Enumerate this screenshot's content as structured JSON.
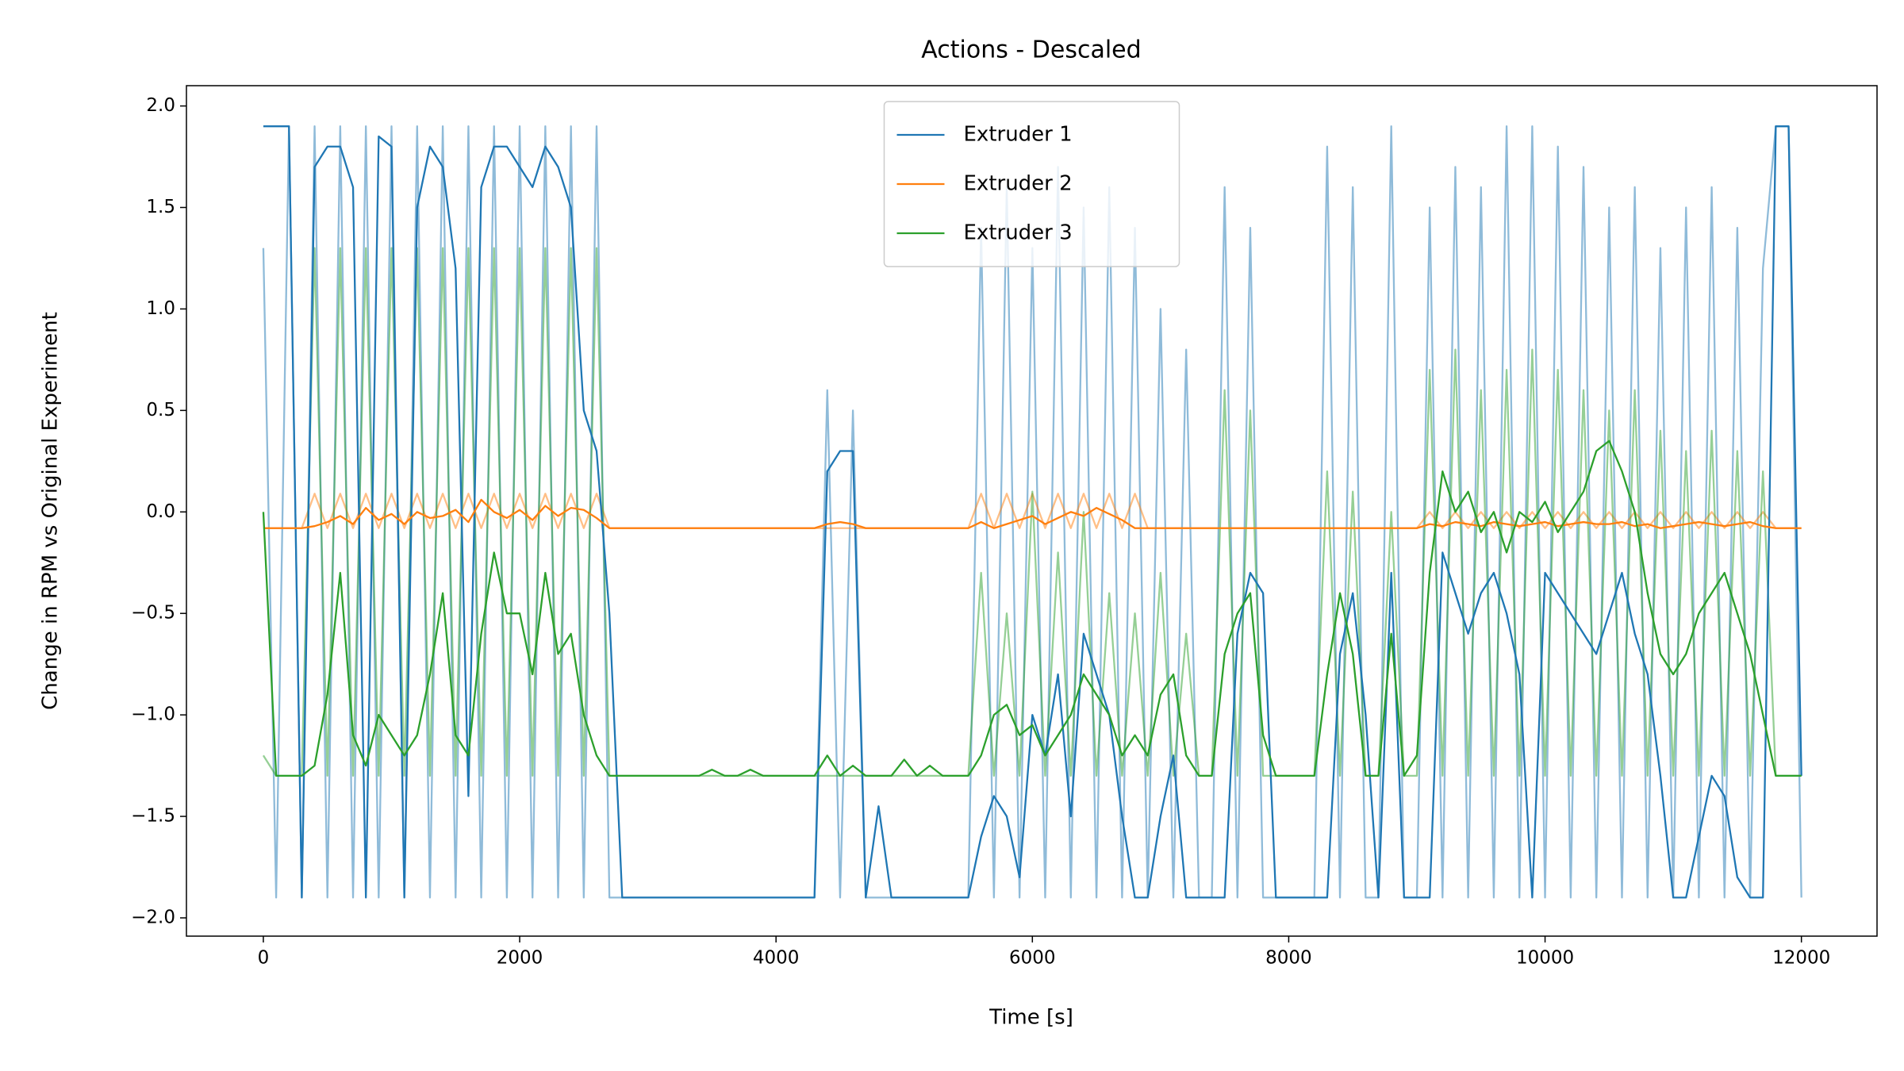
{
  "chart_data": {
    "type": "line",
    "title": "Actions - Descaled",
    "x_label": "Time [s]",
    "y_label": "Change in RPM vs Original Experiment",
    "legend": "upper center",
    "x": [
      0,
      100,
      200,
      300,
      400,
      500,
      600,
      700,
      800,
      900,
      1000,
      1100,
      1200,
      1300,
      1400,
      1500,
      1600,
      1700,
      1800,
      1900,
      2000,
      2100,
      2200,
      2300,
      2400,
      2500,
      2600,
      2700,
      2800,
      2900,
      3000,
      3100,
      3200,
      3300,
      3400,
      3500,
      3600,
      3700,
      3800,
      3900,
      4000,
      4100,
      4200,
      4300,
      4400,
      4500,
      4600,
      4700,
      4800,
      4900,
      5000,
      5100,
      5200,
      5300,
      5400,
      5500,
      5600,
      5700,
      5800,
      5900,
      6000,
      6100,
      6200,
      6300,
      6400,
      6500,
      6600,
      6700,
      6800,
      6900,
      7000,
      7100,
      7200,
      7300,
      7400,
      7500,
      7600,
      7700,
      7800,
      7900,
      8000,
      8100,
      8200,
      8300,
      8400,
      8500,
      8600,
      8700,
      8800,
      8900,
      9000,
      9100,
      9200,
      9300,
      9400,
      9500,
      9600,
      9700,
      9800,
      9900,
      10000,
      10100,
      10200,
      10300,
      10400,
      10500,
      10600,
      10700,
      10800,
      10900,
      11000,
      11100,
      11200,
      11300,
      11400,
      11500,
      11600,
      11700,
      11800,
      11900,
      12000
    ],
    "series": [
      {
        "color": "#1f77b4",
        "opacity": 0.5,
        "values": [
          1.3,
          -1.9,
          1.9,
          -1.9,
          1.9,
          -1.9,
          1.9,
          -1.9,
          1.9,
          -1.9,
          1.9,
          -1.9,
          1.9,
          -1.9,
          1.9,
          -1.9,
          1.9,
          -1.9,
          1.9,
          -1.9,
          1.9,
          -1.9,
          1.9,
          -1.9,
          1.9,
          -1.9,
          1.9,
          -1.9,
          -1.9,
          -1.9,
          -1.9,
          -1.9,
          -1.9,
          -1.9,
          -1.9,
          -1.9,
          -1.9,
          -1.9,
          -1.9,
          -1.9,
          -1.9,
          -1.9,
          -1.9,
          -1.9,
          0.6,
          -1.9,
          0.5,
          -1.9,
          -1.9,
          -1.9,
          -1.9,
          -1.9,
          -1.9,
          -1.9,
          -1.9,
          -1.9,
          1.4,
          -1.9,
          1.6,
          -1.9,
          1.3,
          -1.9,
          1.7,
          -1.9,
          1.5,
          -1.9,
          1.6,
          -1.9,
          1.4,
          -1.9,
          1.0,
          -1.9,
          0.8,
          -1.9,
          -1.9,
          1.6,
          -1.9,
          1.4,
          -1.9,
          -1.9,
          -1.9,
          -1.9,
          -1.9,
          1.8,
          -1.9,
          1.6,
          -1.9,
          -1.9,
          1.9,
          -1.9,
          -1.9,
          1.5,
          -1.9,
          1.7,
          -1.9,
          1.6,
          -1.9,
          1.9,
          -1.9,
          1.9,
          -1.9,
          1.8,
          -1.9,
          1.7,
          -1.9,
          1.5,
          -1.9,
          1.6,
          -1.9,
          1.3,
          -1.9,
          1.5,
          -1.9,
          1.6,
          -1.9,
          1.4,
          -1.9,
          1.2,
          1.9,
          1.9,
          -1.9
        ]
      },
      {
        "color": "#ff7f0e",
        "opacity": 0.5,
        "values": [
          -0.08,
          -0.08,
          -0.08,
          -0.08,
          0.09,
          -0.08,
          0.09,
          -0.08,
          0.09,
          -0.08,
          0.09,
          -0.08,
          0.09,
          -0.08,
          0.09,
          -0.08,
          0.09,
          -0.08,
          0.09,
          -0.08,
          0.09,
          -0.08,
          0.09,
          -0.08,
          0.09,
          -0.08,
          0.09,
          -0.08,
          -0.08,
          -0.08,
          -0.08,
          -0.08,
          -0.08,
          -0.08,
          -0.08,
          -0.08,
          -0.08,
          -0.08,
          -0.08,
          -0.08,
          -0.08,
          -0.08,
          -0.08,
          -0.08,
          -0.08,
          -0.08,
          -0.08,
          -0.08,
          -0.08,
          -0.08,
          -0.08,
          -0.08,
          -0.08,
          -0.08,
          -0.08,
          -0.08,
          0.09,
          -0.08,
          0.09,
          -0.08,
          0.09,
          -0.08,
          0.09,
          -0.08,
          0.09,
          -0.08,
          0.09,
          -0.08,
          0.09,
          -0.08,
          -0.08,
          -0.08,
          -0.08,
          -0.08,
          -0.08,
          -0.08,
          -0.08,
          -0.08,
          -0.08,
          -0.08,
          -0.08,
          -0.08,
          -0.08,
          -0.08,
          -0.08,
          -0.08,
          -0.08,
          -0.08,
          -0.08,
          -0.08,
          -0.08,
          0.0,
          -0.08,
          0.0,
          -0.08,
          0.0,
          -0.08,
          0.0,
          -0.08,
          0.0,
          -0.08,
          0.0,
          -0.08,
          0.0,
          -0.08,
          0.0,
          -0.08,
          0.0,
          -0.08,
          0.0,
          -0.08,
          0.0,
          -0.08,
          0.0,
          -0.08,
          0.0,
          -0.08,
          0.0,
          -0.08,
          -0.08,
          -0.08
        ]
      },
      {
        "color": "#2ca02c",
        "opacity": 0.5,
        "values": [
          -1.2,
          -1.3,
          -1.3,
          -1.3,
          1.3,
          -1.3,
          1.3,
          -1.3,
          1.3,
          -1.3,
          1.3,
          -1.3,
          1.3,
          -1.3,
          1.3,
          -1.3,
          1.3,
          -1.3,
          1.3,
          -1.3,
          1.3,
          -1.3,
          1.3,
          -1.3,
          1.3,
          -1.3,
          1.3,
          -1.3,
          -1.3,
          -1.3,
          -1.3,
          -1.3,
          -1.3,
          -1.3,
          -1.3,
          -1.3,
          -1.3,
          -1.3,
          -1.3,
          -1.3,
          -1.3,
          -1.3,
          -1.3,
          -1.3,
          -1.3,
          -1.3,
          -1.3,
          -1.3,
          -1.3,
          -1.3,
          -1.3,
          -1.3,
          -1.3,
          -1.3,
          -1.3,
          -1.3,
          -0.3,
          -1.3,
          -0.5,
          -1.3,
          0.1,
          -1.3,
          -0.2,
          -1.3,
          0.0,
          -1.3,
          -0.4,
          -1.3,
          -0.5,
          -1.3,
          -0.3,
          -1.3,
          -0.6,
          -1.3,
          -1.3,
          0.6,
          -1.3,
          0.5,
          -1.3,
          -1.3,
          -1.3,
          -1.3,
          -1.3,
          0.2,
          -1.3,
          0.1,
          -1.3,
          -1.3,
          0.0,
          -1.3,
          -1.3,
          0.7,
          -1.3,
          0.8,
          -1.3,
          0.6,
          -1.3,
          0.7,
          -1.3,
          0.8,
          -1.3,
          0.7,
          -1.3,
          0.6,
          -1.3,
          0.5,
          -1.3,
          0.6,
          -1.3,
          0.4,
          -1.3,
          0.3,
          -1.3,
          0.4,
          -1.3,
          0.3,
          -1.3,
          0.2,
          -1.3,
          -1.3,
          -1.3
        ]
      },
      {
        "name": "Extruder 1",
        "color": "#1f77b4",
        "values": [
          1.9,
          1.9,
          1.9,
          -1.9,
          1.7,
          1.8,
          1.8,
          1.6,
          -1.9,
          1.85,
          1.8,
          -1.9,
          1.5,
          1.8,
          1.7,
          1.2,
          -1.4,
          1.6,
          1.8,
          1.8,
          1.7,
          1.6,
          1.8,
          1.7,
          1.5,
          0.5,
          0.3,
          -0.5,
          -1.9,
          -1.9,
          -1.9,
          -1.9,
          -1.9,
          -1.9,
          -1.9,
          -1.9,
          -1.9,
          -1.9,
          -1.9,
          -1.9,
          -1.9,
          -1.9,
          -1.9,
          -1.9,
          0.2,
          0.3,
          0.3,
          -1.9,
          -1.45,
          -1.9,
          -1.9,
          -1.9,
          -1.9,
          -1.9,
          -1.9,
          -1.9,
          -1.6,
          -1.4,
          -1.5,
          -1.8,
          -1.0,
          -1.2,
          -0.8,
          -1.5,
          -0.6,
          -0.8,
          -1.0,
          -1.5,
          -1.9,
          -1.9,
          -1.5,
          -1.2,
          -1.9,
          -1.9,
          -1.9,
          -1.9,
          -0.6,
          -0.3,
          -0.4,
          -1.9,
          -1.9,
          -1.9,
          -1.9,
          -1.9,
          -0.7,
          -0.4,
          -1.0,
          -1.9,
          -0.3,
          -1.9,
          -1.9,
          -1.9,
          -0.2,
          -0.4,
          -0.6,
          -0.4,
          -0.3,
          -0.5,
          -0.8,
          -1.9,
          -0.3,
          -0.4,
          -0.5,
          -0.6,
          -0.7,
          -0.5,
          -0.3,
          -0.6,
          -0.8,
          -1.3,
          -1.9,
          -1.9,
          -1.6,
          -1.3,
          -1.4,
          -1.8,
          -1.9,
          -1.9,
          1.9,
          1.9,
          -1.3
        ]
      },
      {
        "name": "Extruder 2",
        "color": "#ff7f0e",
        "values": [
          -0.08,
          -0.08,
          -0.08,
          -0.08,
          -0.07,
          -0.05,
          -0.02,
          -0.06,
          0.02,
          -0.04,
          -0.01,
          -0.06,
          0.0,
          -0.03,
          -0.02,
          0.01,
          -0.05,
          0.06,
          0.0,
          -0.03,
          0.01,
          -0.04,
          0.03,
          -0.02,
          0.02,
          0.01,
          -0.03,
          -0.08,
          -0.08,
          -0.08,
          -0.08,
          -0.08,
          -0.08,
          -0.08,
          -0.08,
          -0.08,
          -0.08,
          -0.08,
          -0.08,
          -0.08,
          -0.08,
          -0.08,
          -0.08,
          -0.08,
          -0.06,
          -0.05,
          -0.06,
          -0.08,
          -0.08,
          -0.08,
          -0.08,
          -0.08,
          -0.08,
          -0.08,
          -0.08,
          -0.08,
          -0.05,
          -0.08,
          -0.06,
          -0.04,
          -0.02,
          -0.06,
          -0.03,
          0.0,
          -0.02,
          0.02,
          -0.01,
          -0.04,
          -0.08,
          -0.08,
          -0.08,
          -0.08,
          -0.08,
          -0.08,
          -0.08,
          -0.08,
          -0.08,
          -0.08,
          -0.08,
          -0.08,
          -0.08,
          -0.08,
          -0.08,
          -0.08,
          -0.08,
          -0.08,
          -0.08,
          -0.08,
          -0.08,
          -0.08,
          -0.08,
          -0.06,
          -0.07,
          -0.05,
          -0.06,
          -0.07,
          -0.05,
          -0.06,
          -0.07,
          -0.06,
          -0.05,
          -0.07,
          -0.06,
          -0.05,
          -0.06,
          -0.06,
          -0.05,
          -0.07,
          -0.06,
          -0.08,
          -0.07,
          -0.06,
          -0.05,
          -0.06,
          -0.07,
          -0.06,
          -0.05,
          -0.07,
          -0.08,
          -0.08,
          -0.08
        ]
      },
      {
        "name": "Extruder 3",
        "color": "#2ca02c",
        "values": [
          0.0,
          -1.3,
          -1.3,
          -1.3,
          -1.25,
          -0.9,
          -0.3,
          -1.1,
          -1.25,
          -1.0,
          -1.1,
          -1.2,
          -1.1,
          -0.8,
          -0.4,
          -1.1,
          -1.2,
          -0.6,
          -0.2,
          -0.5,
          -0.5,
          -0.8,
          -0.3,
          -0.7,
          -0.6,
          -1.0,
          -1.2,
          -1.3,
          -1.3,
          -1.3,
          -1.3,
          -1.3,
          -1.3,
          -1.3,
          -1.3,
          -1.27,
          -1.3,
          -1.3,
          -1.27,
          -1.3,
          -1.3,
          -1.3,
          -1.3,
          -1.3,
          -1.2,
          -1.3,
          -1.25,
          -1.3,
          -1.3,
          -1.3,
          -1.22,
          -1.3,
          -1.25,
          -1.3,
          -1.3,
          -1.3,
          -1.2,
          -1.0,
          -0.95,
          -1.1,
          -1.05,
          -1.2,
          -1.1,
          -1.0,
          -0.8,
          -0.9,
          -1.0,
          -1.2,
          -1.1,
          -1.2,
          -0.9,
          -0.8,
          -1.2,
          -1.3,
          -1.3,
          -0.7,
          -0.5,
          -0.4,
          -1.1,
          -1.3,
          -1.3,
          -1.3,
          -1.3,
          -0.8,
          -0.4,
          -0.7,
          -1.3,
          -1.3,
          -0.6,
          -1.3,
          -1.2,
          -0.3,
          0.2,
          0.0,
          0.1,
          -0.1,
          0.0,
          -0.2,
          0.0,
          -0.05,
          0.05,
          -0.1,
          0.0,
          0.1,
          0.3,
          0.35,
          0.2,
          0.0,
          -0.4,
          -0.7,
          -0.8,
          -0.7,
          -0.5,
          -0.4,
          -0.3,
          -0.5,
          -0.7,
          -1.0,
          -1.3,
          -1.3,
          -1.3
        ]
      }
    ],
    "xlim": [
      -600,
      12590
    ],
    "xticks": [
      0,
      2000,
      4000,
      6000,
      8000,
      10000,
      12000
    ],
    "ylim": [
      -2.09,
      2.1
    ],
    "yticks": [
      {
        "value": -2,
        "label": "−2.0"
      },
      {
        "value": -1.5,
        "label": "−1.5"
      },
      {
        "value": -1,
        "label": "−1.0"
      },
      {
        "value": -0.5,
        "label": "−0.5"
      },
      {
        "value": 0,
        "label": "0.0"
      },
      {
        "value": 0.5,
        "label": "0.5"
      },
      {
        "value": 1,
        "label": "1.0"
      },
      {
        "value": 1.5,
        "label": "1.5"
      },
      {
        "value": 2,
        "label": "2.0"
      }
    ]
  }
}
